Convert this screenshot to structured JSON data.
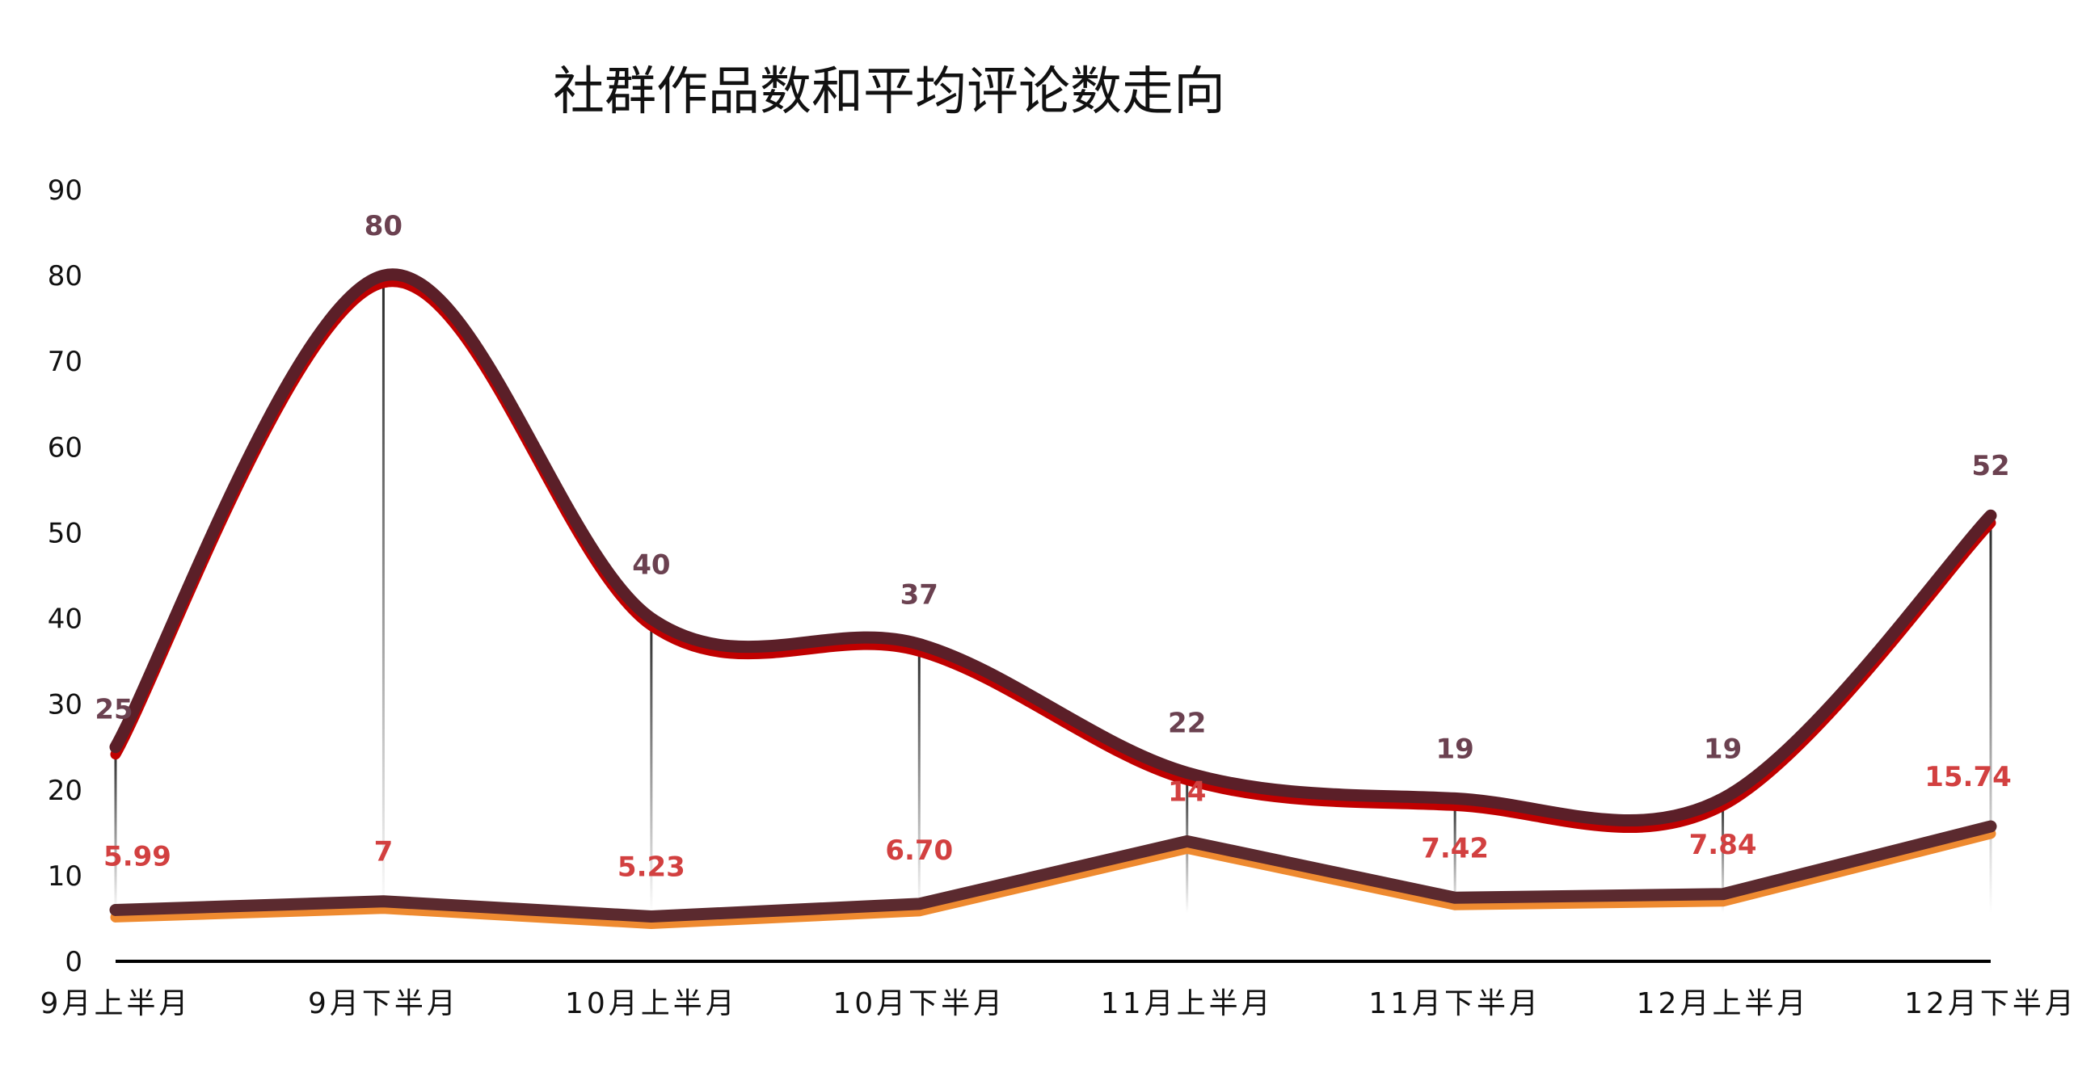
{
  "chart_data": {
    "type": "line",
    "title": "社群作品数和平均评论数走向",
    "categories": [
      "9月上半月",
      "9月下半月",
      "10月上半月",
      "10月下半月",
      "11月上半月",
      "11月下半月",
      "12月上半月",
      "12月下半月"
    ],
    "series": [
      {
        "values": [
          25,
          80,
          40,
          37,
          22,
          19,
          19,
          52
        ],
        "labels": [
          "25",
          "80",
          "40",
          "37",
          "22",
          "19",
          "19",
          "52"
        ],
        "smooth": true,
        "color": "#5b1f28",
        "edge_color": "#c00000",
        "label_color": "#6b4150"
      },
      {
        "values": [
          5.99,
          7,
          5.23,
          6.7,
          14,
          7.42,
          7.84,
          15.74
        ],
        "labels": [
          "5.99",
          "7",
          "5.23",
          "6.70",
          "14",
          "7.42",
          "7.84",
          "15.74"
        ],
        "smooth": false,
        "color": "#5b2a2f",
        "edge_color": "#ee8a30",
        "label_color": "#d24040"
      }
    ],
    "yticks": [
      "0",
      "10",
      "20",
      "30",
      "40",
      "50",
      "60",
      "70",
      "80",
      "90"
    ],
    "ylim": [
      0,
      90
    ],
    "grid": false,
    "legend": "none"
  }
}
